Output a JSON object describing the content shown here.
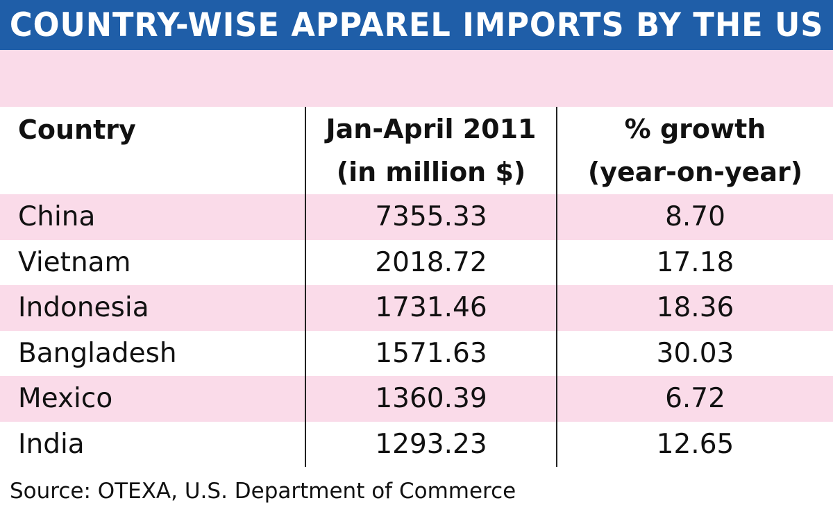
{
  "title": "COUNTRY-WISE APPAREL IMPORTS BY THE US",
  "headers": {
    "country": "Country",
    "imports_line1": "Jan-April 2011",
    "imports_line2": "(in million $)",
    "growth_line1": "% growth",
    "growth_line2": "(year-on-year)"
  },
  "rows": [
    {
      "country": "China",
      "imports": "7355.33",
      "growth": "8.70"
    },
    {
      "country": "Vietnam",
      "imports": "2018.72",
      "growth": "17.18"
    },
    {
      "country": "Indonesia",
      "imports": "1731.46",
      "growth": "18.36"
    },
    {
      "country": "Bangladesh",
      "imports": "1571.63",
      "growth": "30.03"
    },
    {
      "country": "Mexico",
      "imports": "1360.39",
      "growth": "6.72"
    },
    {
      "country": "India",
      "imports": "1293.23",
      "growth": "12.65"
    }
  ],
  "source": "Source: OTEXA, U.S. Department of Commerce",
  "colors": {
    "title_bar": "#1f5ea8",
    "row_band": "#fadbe9",
    "text": "#111111"
  },
  "chart_data": {
    "type": "table",
    "title": "COUNTRY-WISE APPAREL IMPORTS BY THE US",
    "columns": [
      "Country",
      "Jan-April 2011 (in million $)",
      "% growth (year-on-year)"
    ],
    "categories": [
      "China",
      "Vietnam",
      "Indonesia",
      "Bangladesh",
      "Mexico",
      "India"
    ],
    "series": [
      {
        "name": "Jan-April 2011 (in million $)",
        "values": [
          7355.33,
          2018.72,
          1731.46,
          1571.63,
          1360.39,
          1293.23
        ]
      },
      {
        "name": "% growth (year-on-year)",
        "values": [
          8.7,
          17.18,
          18.36,
          30.03,
          6.72,
          12.65
        ]
      }
    ]
  }
}
